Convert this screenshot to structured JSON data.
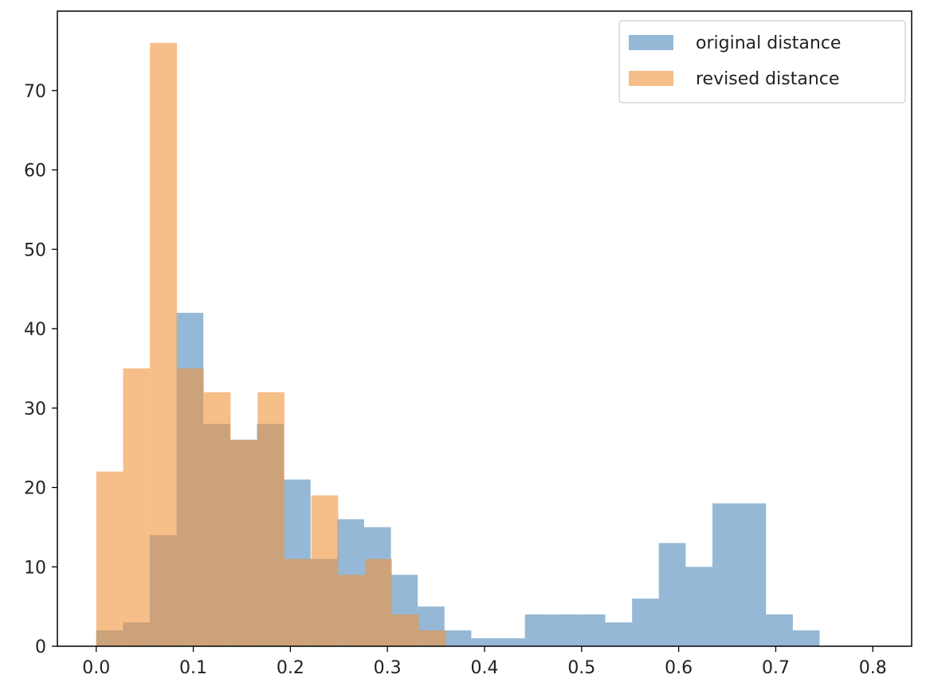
{
  "chart_data": {
    "type": "histogram",
    "title": "",
    "xlabel": "",
    "ylabel": "",
    "xlim": [
      -0.04,
      0.84
    ],
    "ylim": [
      0,
      80
    ],
    "xticks": [
      "0.0",
      "0.1",
      "0.2",
      "0.3",
      "0.4",
      "0.5",
      "0.6",
      "0.7",
      "0.8"
    ],
    "yticks": [
      "0",
      "10",
      "20",
      "30",
      "40",
      "50",
      "60",
      "70"
    ],
    "grid": false,
    "legend_position": "top-right",
    "series": [
      {
        "name": "original distance",
        "color": "#4c88bb",
        "bin_edges": [
          0.0,
          0.0276,
          0.0552,
          0.0828,
          0.1104,
          0.138,
          0.1656,
          0.1932,
          0.2208,
          0.2484,
          0.276,
          0.3036,
          0.3312,
          0.3588,
          0.3864,
          0.414,
          0.4416,
          0.4692,
          0.4968,
          0.5244,
          0.552,
          0.5796,
          0.6072,
          0.6348,
          0.6624,
          0.69,
          0.7176,
          0.7452
        ],
        "counts": [
          2,
          3,
          14,
          42,
          28,
          26,
          28,
          21,
          11,
          16,
          15,
          9,
          5,
          2,
          1,
          1,
          4,
          4,
          4,
          3,
          6,
          13,
          10,
          18,
          18,
          4,
          2
        ]
      },
      {
        "name": "revised distance",
        "color": "#f0923b",
        "bin_edges": [
          0.0,
          0.0277,
          0.0554,
          0.0831,
          0.1108,
          0.1385,
          0.1662,
          0.1939,
          0.2216,
          0.2493,
          0.277,
          0.3047,
          0.3324,
          0.3601
        ],
        "counts": [
          22,
          35,
          76,
          35,
          32,
          26,
          32,
          11,
          19,
          9,
          11,
          4,
          2
        ]
      }
    ]
  }
}
